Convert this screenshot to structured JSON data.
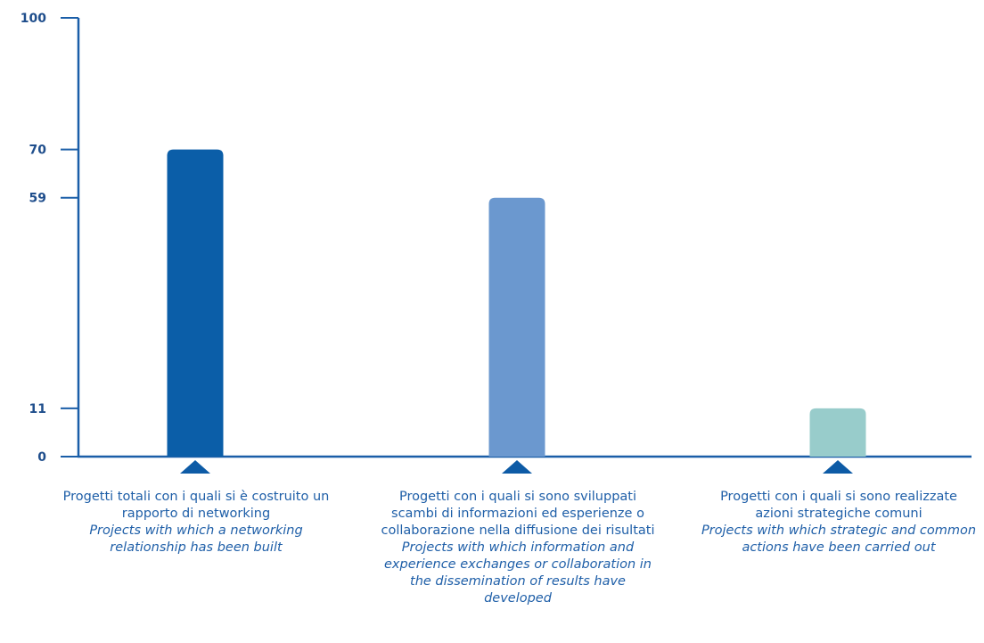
{
  "colors": {
    "axis": "#1a5ea8",
    "text": "#1f5fa8",
    "tick_text": "#1f4e8c",
    "bars": [
      "#0b5ea8",
      "#6b98cf",
      "#98cccb"
    ]
  },
  "chart_data": {
    "type": "bar",
    "title": "",
    "xlabel": "",
    "ylabel": "",
    "ylim": [
      0,
      100
    ],
    "yticks": [
      0,
      11,
      59,
      70,
      100
    ],
    "grid": false,
    "categories": [
      {
        "it": "Progetti totali con i quali si è costruito un rapporto di networking",
        "en": "Projects with which a networking relationship has been built"
      },
      {
        "it": "Progetti con i quali si sono sviluppati scambi di informazioni ed esperienze o collaborazione nella diffusione dei risultati",
        "en": "Projects with which information and experience exchanges or collaboration in the dissemination of results have developed"
      },
      {
        "it": "Progetti con i quali si sono realizzate azioni strategiche comuni",
        "en": "Projects with which strategic and common actions have been carried out"
      }
    ],
    "values": [
      70,
      59,
      11
    ]
  }
}
